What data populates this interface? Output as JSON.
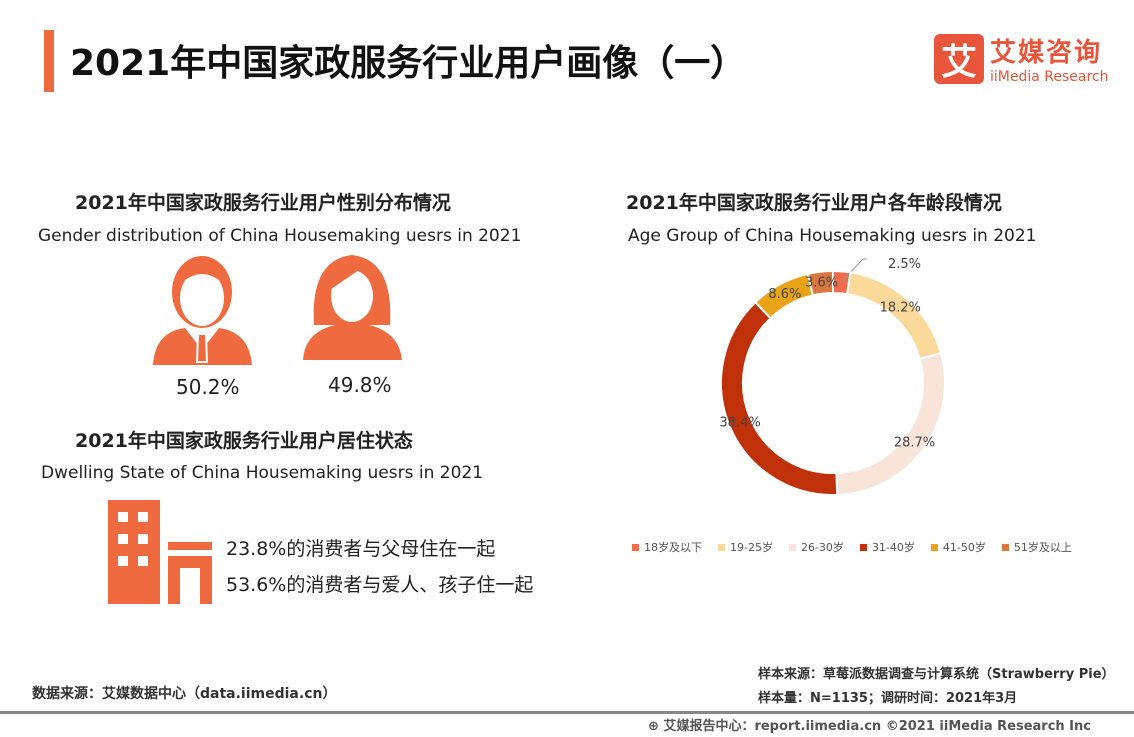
{
  "header": {
    "title": "2021年中国家政服务行业用户画像（一）",
    "logo_mark": "艾",
    "logo_cn": "艾媒咨询",
    "logo_en": "iiMedia Research"
  },
  "gender": {
    "title_cn": "2021年中国家政服务行业用户性别分布情况",
    "title_en": "Gender distribution of  China Housemaking uesrs  in 2021",
    "male_pct": "50.2%",
    "female_pct": "49.8%",
    "icon_color": "#f06a3f"
  },
  "dwelling": {
    "title_cn": "2021年中国家政服务行业用户居住状态",
    "title_en": "Dwelling State  of  China Housemaking uesrs  in 2021",
    "line1": "23.8%的消费者与父母住在一起",
    "line2": "53.6%的消费者与爱人、孩子住一起"
  },
  "chart_data": {
    "type": "donut",
    "title": "2021年中国家政服务行业用户各年龄段情况",
    "subtitle": "Age Group of  China Housemaking uesrs  in 2021",
    "categories": [
      "18岁及以下",
      "19-25岁",
      "26-30岁",
      "31-40岁",
      "41-50岁",
      "51岁及以上"
    ],
    "values": [
      2.5,
      18.2,
      28.7,
      38.4,
      8.6,
      3.6
    ],
    "labels": [
      "2.5%",
      "18.2%",
      "28.7%",
      "38.4%",
      "8.6%",
      "3.6%"
    ],
    "colors": [
      "#f26b4a",
      "#fbd99a",
      "#f8e4d8",
      "#c0310a",
      "#e8a317",
      "#d9773f"
    ],
    "legend": "bottom"
  },
  "footer": {
    "source": "数据来源：艾媒数据中心（data.iimedia.cn）",
    "sample_source": "样本来源：草莓派数据调查与计算系统（Strawberry Pie）",
    "sample_size": "样本量：N=1135；调研时间：2021年3月",
    "report": "艾媒报告中心：report.iimedia.cn   ©2021  iiMedia Research  Inc"
  }
}
